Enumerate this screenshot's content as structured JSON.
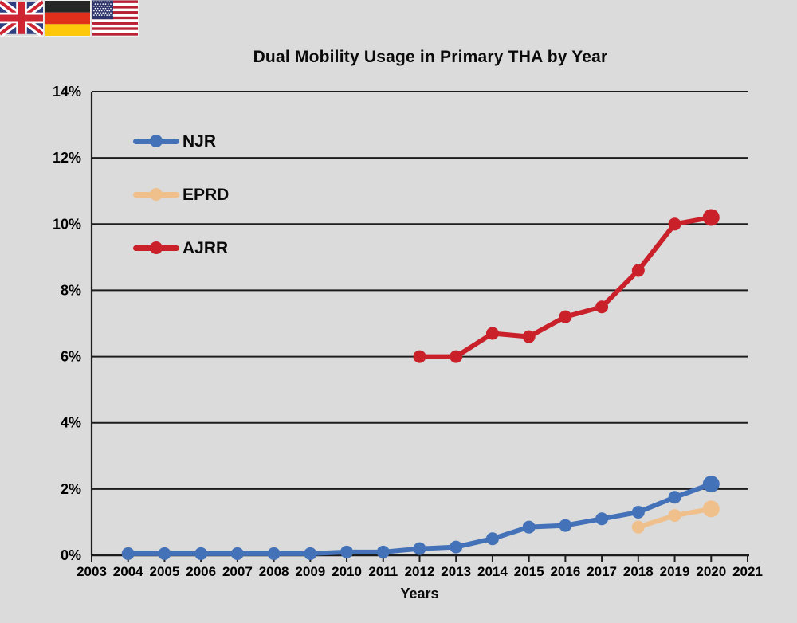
{
  "page": {
    "background": "#dbdbdb"
  },
  "flags": {
    "items": [
      {
        "label": "United Kingdom"
      },
      {
        "label": "Germany"
      },
      {
        "label": "United States"
      }
    ]
  },
  "chart_data": {
    "type": "line",
    "title": "Dual Mobility Usage in Primary THA by Year",
    "xlabel": "Years",
    "ylabel": "",
    "xlim": [
      2003,
      2021
    ],
    "ylim": [
      0,
      14
    ],
    "x_ticks": [
      2003,
      2004,
      2005,
      2006,
      2007,
      2008,
      2009,
      2010,
      2011,
      2012,
      2013,
      2014,
      2015,
      2016,
      2017,
      2018,
      2019,
      2020,
      2021
    ],
    "y_ticks": [
      0,
      2,
      4,
      6,
      8,
      10,
      12,
      14
    ],
    "y_tick_suffix": "%",
    "grid": "horizontal-only",
    "legend_position": "inside-top-left",
    "axis_color": "#1c1c1c",
    "series": [
      {
        "name": "NJR",
        "color": "#4472b8",
        "x": [
          2004,
          2005,
          2006,
          2007,
          2008,
          2009,
          2010,
          2011,
          2012,
          2013,
          2014,
          2015,
          2016,
          2017,
          2018,
          2019,
          2020
        ],
        "y": [
          0.05,
          0.05,
          0.05,
          0.05,
          0.05,
          0.05,
          0.1,
          0.1,
          0.2,
          0.25,
          0.5,
          0.85,
          0.9,
          1.1,
          1.3,
          1.75,
          2.15
        ]
      },
      {
        "name": "EPRD",
        "color": "#efc08c",
        "x": [
          2018,
          2019,
          2020
        ],
        "y": [
          0.85,
          1.2,
          1.4
        ]
      },
      {
        "name": "AJRR",
        "color": "#c9202a",
        "x": [
          2012,
          2013,
          2014,
          2015,
          2016,
          2017,
          2018,
          2019,
          2020
        ],
        "y": [
          6.0,
          6.0,
          6.7,
          6.6,
          7.2,
          7.5,
          8.6,
          10.0,
          10.2
        ]
      }
    ]
  }
}
